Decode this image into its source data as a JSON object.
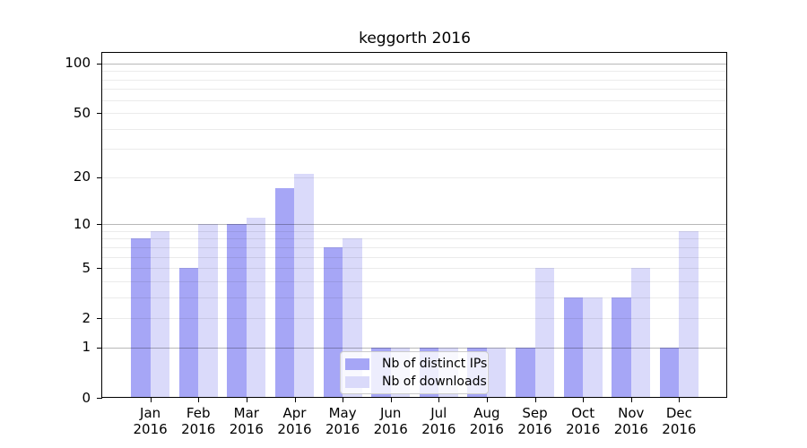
{
  "chart_data": {
    "type": "bar",
    "title": "keggorth 2016",
    "categories": [
      "Jan 2016",
      "Feb 2016",
      "Mar 2016",
      "Apr 2016",
      "May 2016",
      "Jun 2016",
      "Jul 2016",
      "Aug 2016",
      "Sep 2016",
      "Oct 2016",
      "Nov 2016",
      "Dec 2016"
    ],
    "month_labels": [
      "Jan",
      "Feb",
      "Mar",
      "Apr",
      "May",
      "Jun",
      "Jul",
      "Aug",
      "Sep",
      "Oct",
      "Nov",
      "Dec"
    ],
    "year_label": "2016",
    "series": [
      {
        "name": "Nb of distinct IPs",
        "color": "#a6a6f6",
        "values": [
          8,
          5,
          10,
          17,
          7,
          1,
          1,
          1,
          1,
          3,
          3,
          1
        ]
      },
      {
        "name": "Nb of downloads",
        "color": "#dadafa",
        "values": [
          9,
          10,
          11,
          21,
          8,
          1,
          1,
          1,
          5,
          3,
          5,
          9
        ]
      }
    ],
    "xlabel": "",
    "ylabel": "",
    "yscale": "log1p",
    "ylim": [
      0,
      116
    ],
    "grid": true,
    "legend_position": "lower center",
    "yticks": [
      {
        "value": 0,
        "label": "0"
      },
      {
        "value": 1,
        "label": "1"
      },
      {
        "value": 2,
        "label": "2"
      },
      {
        "value": 5,
        "label": "5"
      },
      {
        "value": 10,
        "label": "10"
      },
      {
        "value": 20,
        "label": "20"
      },
      {
        "value": 50,
        "label": "50"
      },
      {
        "value": 100,
        "label": "100"
      }
    ],
    "major_gridlines": [
      1,
      10,
      100
    ],
    "minor_gridlines": [
      2,
      3,
      4,
      5,
      6,
      7,
      8,
      9,
      20,
      30,
      40,
      50,
      60,
      70,
      80,
      90
    ]
  },
  "colors": {
    "background": "#ffffff",
    "bar_distinct_ips": "#a6a6f6",
    "bar_downloads": "#dadafa",
    "grid_major": "rgba(0,0,0,0.28)",
    "grid_minor": "rgba(0,0,0,0.08)",
    "spine": "#000000",
    "legend_border": "#cccccc",
    "legend_background": "rgba(255,255,255,0.8)"
  }
}
